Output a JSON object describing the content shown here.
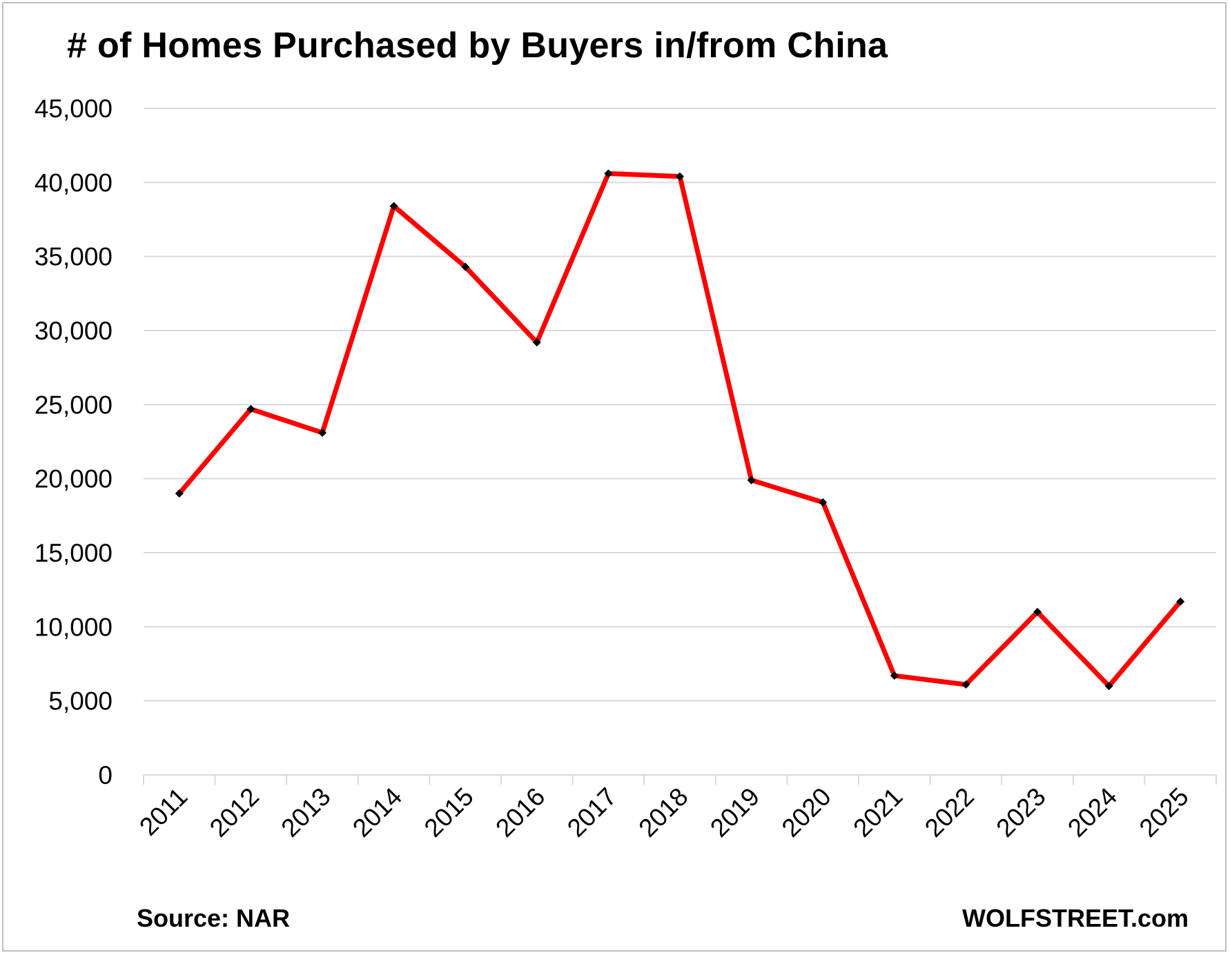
{
  "chart_data": {
    "type": "line",
    "title": "# of Homes Purchased by Buyers in/from China",
    "xlabel": "",
    "ylabel": "",
    "categories": [
      "2011",
      "2012",
      "2013",
      "2014",
      "2015",
      "2016",
      "2017",
      "2018",
      "2019",
      "2020",
      "2021",
      "2022",
      "2023",
      "2024",
      "2025"
    ],
    "series": [
      {
        "values": [
          19000,
          24700,
          23100,
          38400,
          34300,
          29200,
          40600,
          40400,
          19900,
          18400,
          6700,
          6100,
          11000,
          6000,
          11700
        ],
        "color": "#ff0000",
        "marker_color": "#000000"
      }
    ],
    "ylim": [
      0,
      45000
    ],
    "yticks": [
      0,
      5000,
      10000,
      15000,
      20000,
      25000,
      30000,
      35000,
      40000,
      45000
    ],
    "ytick_labels": [
      "0",
      "5,000",
      "10,000",
      "15,000",
      "20,000",
      "25,000",
      "30,000",
      "35,000",
      "40,000",
      "45,000"
    ],
    "grid": true,
    "legend": "none"
  },
  "footer": {
    "source": "Source: NAR",
    "credit": "WOLFSTREET.com"
  }
}
